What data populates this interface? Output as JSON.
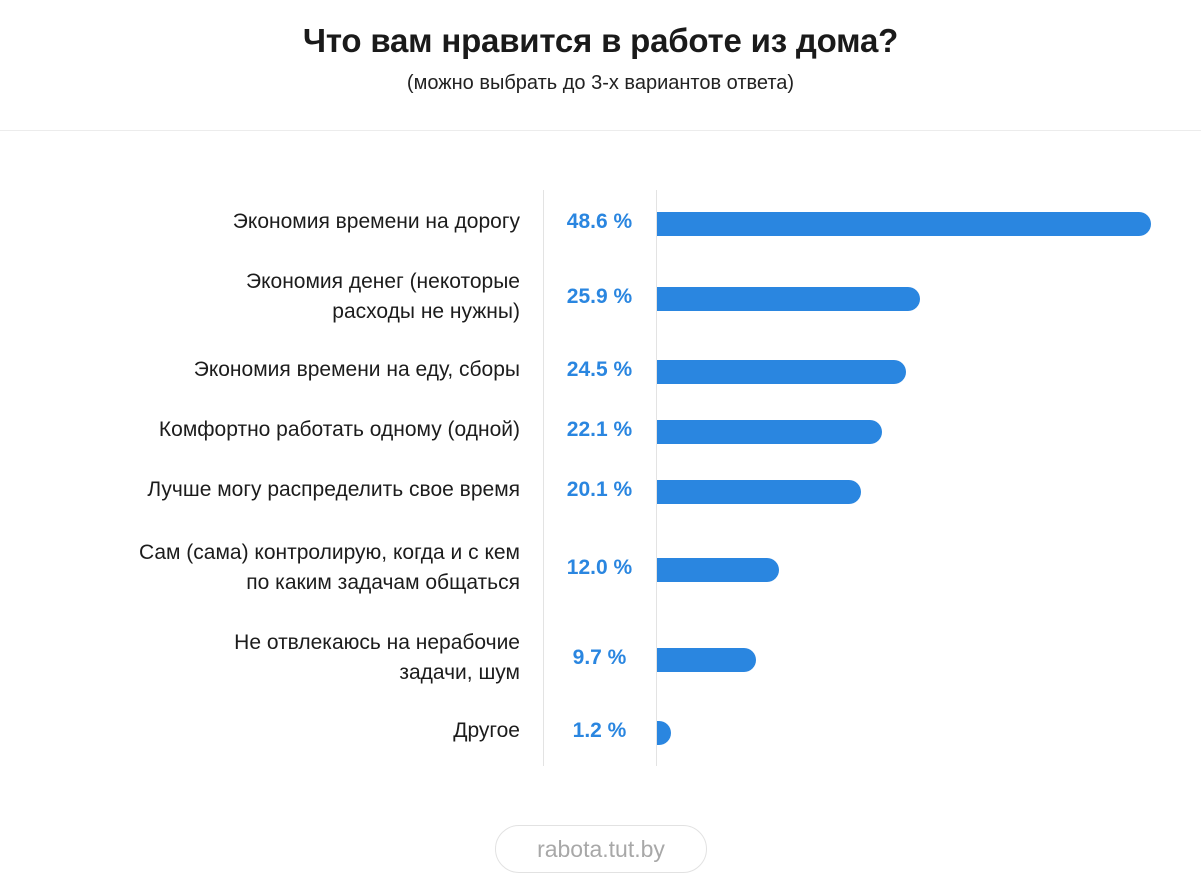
{
  "header": {
    "title": "Что вам нравится в работе из дома?",
    "subtitle": "(можно выбрать до 3-х вариантов ответа)"
  },
  "footer": {
    "source": "rabota.tut.by"
  },
  "colors": {
    "bar": "#2a86e0",
    "value_text": "#2a86e0"
  },
  "chart_data": {
    "type": "bar",
    "orientation": "horizontal",
    "unit": "%",
    "categories": [
      "Экономия времени на дорогу",
      "Экономия денег (некоторые расходы не нужны)",
      "Экономия времени на еду, сборы",
      "Комфортно работать одному (одной)",
      "Лучше могу распределить свое время",
      "Сам (сама) контролирую, когда и с кем по каким задачам общаться",
      "Не отвлекаюсь на нерабочие задачи, шум",
      "Другое"
    ],
    "category_lines": [
      [
        "Экономия времени на дорогу"
      ],
      [
        "Экономия денег (некоторые",
        "расходы не нужны)"
      ],
      [
        "Экономия времени на еду, сборы"
      ],
      [
        "Комфортно работать одному (одной)"
      ],
      [
        "Лучше могу распределить свое время"
      ],
      [
        "Сам (сама) контролирую, когда и с кем",
        "по каким задачам общаться"
      ],
      [
        "Не отвлекаюсь на нерабочие",
        "задачи, шум"
      ],
      [
        "Другое"
      ]
    ],
    "values": [
      48.6,
      25.9,
      24.5,
      22.1,
      20.1,
      12.0,
      9.7,
      1.2
    ],
    "value_labels": [
      "48.6 %",
      "25.9 %",
      "24.5 %",
      "22.1 %",
      "20.1 %",
      "12.0 %",
      "9.7 %",
      "1.2 %"
    ],
    "grid": false,
    "legend": "none"
  }
}
